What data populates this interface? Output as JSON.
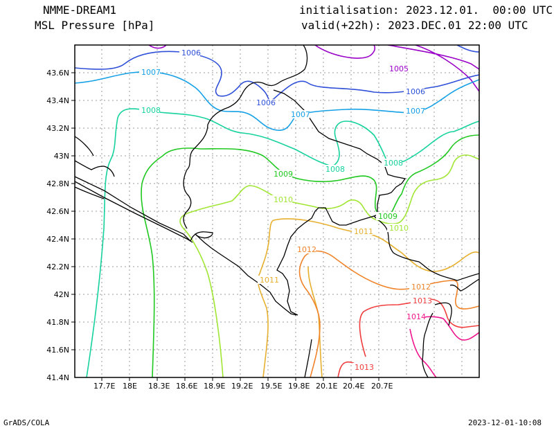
{
  "header": {
    "model": "NMME-DREAM1",
    "variable": "MSL Pressure [hPa]",
    "init": "initialisation: 2023.12.01.  00:00 UTC",
    "valid": "valid(+22h): 2023.DEC.01 22:00 UTC"
  },
  "footer": {
    "left": "GrADS/COLA",
    "right": "2023-12-01-10:08"
  },
  "axes": {
    "lon_labels": [
      "17.7E",
      "18E",
      "18.3E",
      "18.6E",
      "18.9E",
      "19.2E",
      "19.5E",
      "19.8E",
      "20.1E",
      "20.4E",
      "20.7E"
    ],
    "lat_labels": [
      "43.6N",
      "43.4N",
      "43.2N",
      "43N",
      "42.8N",
      "42.6N",
      "42.4N",
      "42.2N",
      "42N",
      "41.8N",
      "41.6N",
      "41.4N"
    ]
  },
  "contours": [
    {
      "level": "1005",
      "color": "#9a00c8"
    },
    {
      "level": "1006",
      "color": "#2f4fd8"
    },
    {
      "level": "1007",
      "color": "#14a0e6"
    },
    {
      "level": "1008",
      "color": "#14d29c"
    },
    {
      "level": "1009",
      "color": "#1ec81e"
    },
    {
      "level": "1010",
      "color": "#a0e632"
    },
    {
      "level": "1011",
      "color": "#e6af2d"
    },
    {
      "level": "1012",
      "color": "#f08228"
    },
    {
      "level": "1013",
      "color": "#f03c3c"
    },
    {
      "level": "1014",
      "color": "#f0148c"
    }
  ]
}
